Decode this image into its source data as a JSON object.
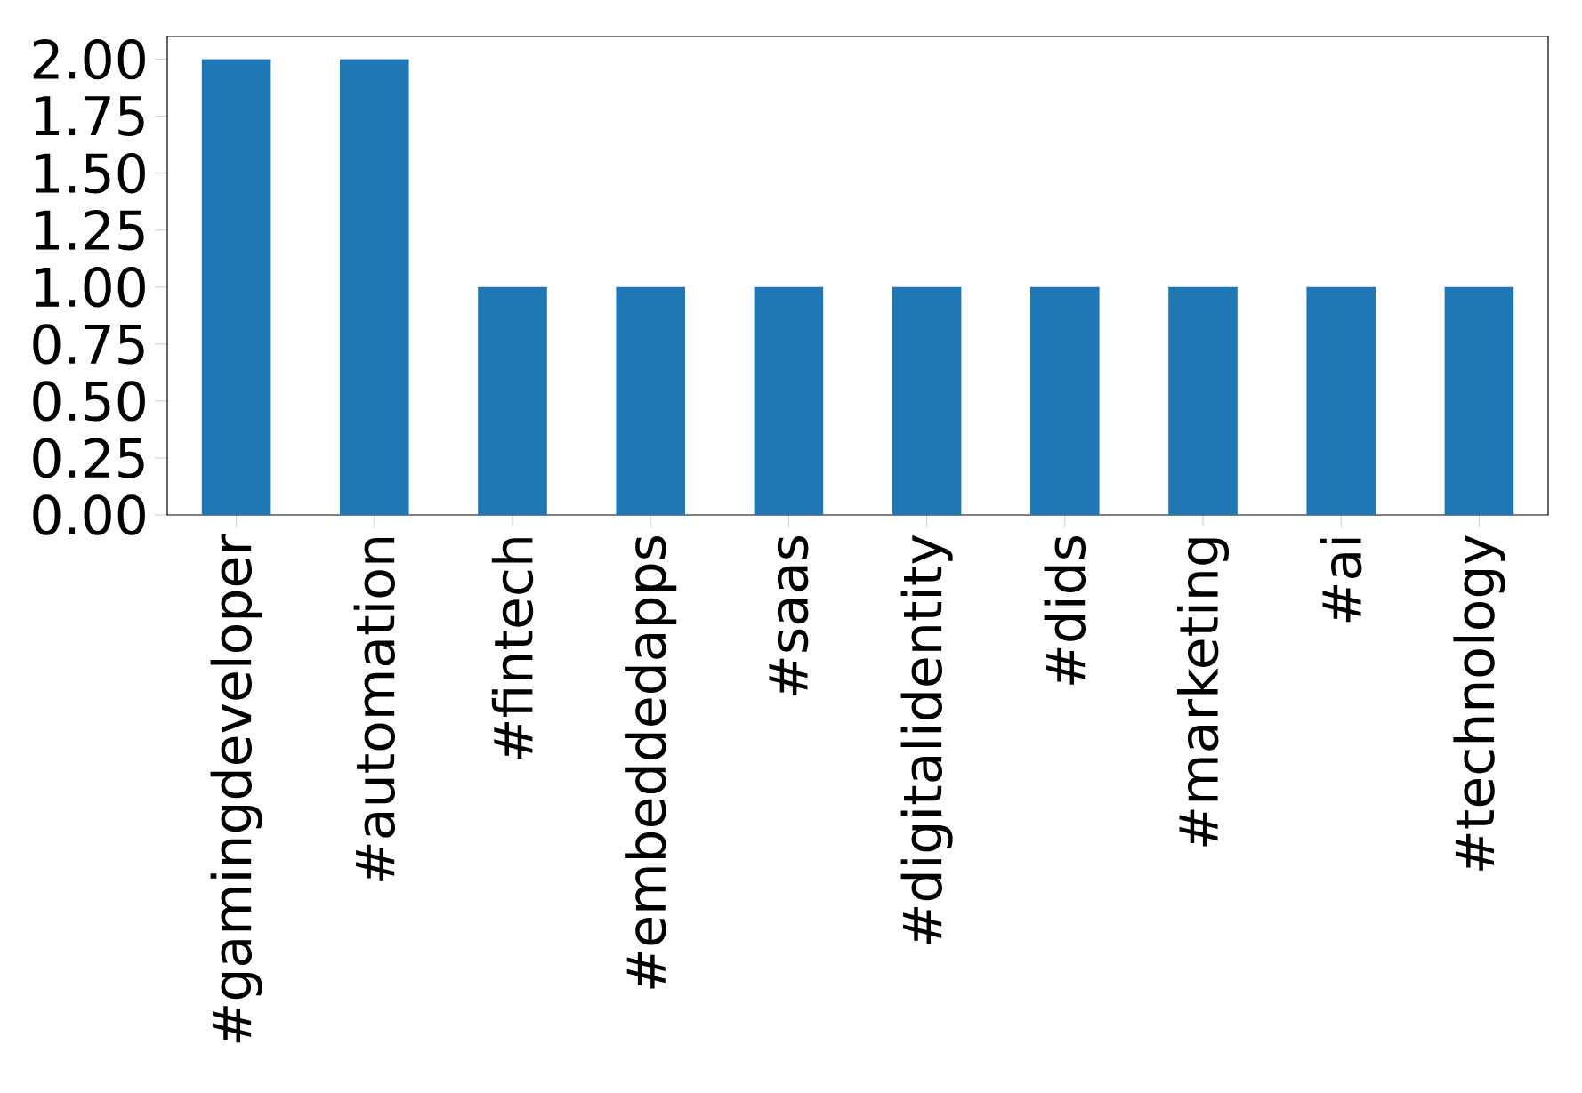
{
  "chart_data": {
    "type": "bar",
    "categories": [
      "#gamingdeveloper",
      "#automation",
      "#fintech",
      "#embeddedapps",
      "#saas",
      "#digitalidentity",
      "#dids",
      "#marketing",
      "#ai",
      "#technology"
    ],
    "values": [
      2,
      2,
      1,
      1,
      1,
      1,
      1,
      1,
      1,
      1
    ],
    "color": "#1f77b4",
    "ylim": [
      0,
      2.1
    ],
    "yticks": [
      {
        "value": 0,
        "label": "0.00"
      },
      {
        "value": 0.25,
        "label": "0.25"
      },
      {
        "value": 0.5,
        "label": "0.50"
      },
      {
        "value": 0.75,
        "label": "0.75"
      },
      {
        "value": 1,
        "label": "1.00"
      },
      {
        "value": 1.25,
        "label": "1.25"
      },
      {
        "value": 1.5,
        "label": "1.50"
      },
      {
        "value": 1.75,
        "label": "1.75"
      },
      {
        "value": 2,
        "label": "2.00"
      }
    ],
    "grid": false
  }
}
